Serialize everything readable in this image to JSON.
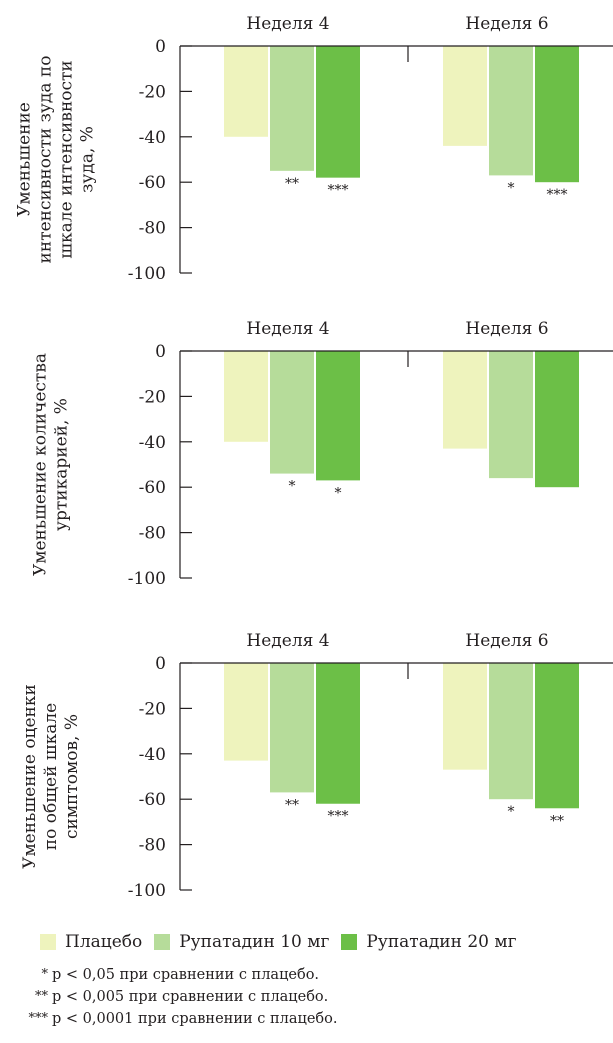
{
  "chart_data": [
    {
      "type": "bar",
      "ylabel": [
        "Уменьшение",
        "интенсивности зуда по",
        "шкале интенсивности",
        "зуда, %"
      ],
      "ylim": [
        -100,
        0
      ],
      "yticks": [
        "0",
        "-20",
        "-40",
        "-60",
        "-80",
        "-100"
      ],
      "categories": [
        "Неделя 4",
        "Неделя 6"
      ],
      "series": [
        {
          "name": "Плацебо",
          "values": [
            -40,
            -44
          ]
        },
        {
          "name": "Рупатадин 10 мг",
          "values": [
            -55,
            -57
          ]
        },
        {
          "name": "Рупатадин 20 мг",
          "values": [
            -58,
            -60
          ]
        }
      ],
      "annotations": [
        [
          "",
          "**",
          "***"
        ],
        [
          "",
          "*",
          "***"
        ]
      ]
    },
    {
      "type": "bar",
      "ylabel": [
        "Уменьшение количества",
        "уртикарией, %"
      ],
      "ylim": [
        -100,
        0
      ],
      "yticks": [
        "0",
        "-20",
        "-40",
        "-60",
        "-80",
        "-100"
      ],
      "categories": [
        "Неделя 4",
        "Неделя 6"
      ],
      "series": [
        {
          "name": "Плацебо",
          "values": [
            -40,
            -43
          ]
        },
        {
          "name": "Рупатадин 10 мг",
          "values": [
            -54,
            -56
          ]
        },
        {
          "name": "Рупатадин 20 мг",
          "values": [
            -57,
            -60
          ]
        }
      ],
      "annotations": [
        [
          "",
          "*",
          "*"
        ],
        [
          "",
          "",
          ""
        ]
      ]
    },
    {
      "type": "bar",
      "ylabel": [
        "Уменьшение оценки",
        "по общей шкале",
        "симптомов, %"
      ],
      "ylim": [
        -100,
        0
      ],
      "yticks": [
        "0",
        "-20",
        "-40",
        "-60",
        "-80",
        "-100"
      ],
      "categories": [
        "Неделя 4",
        "Неделя 6"
      ],
      "series": [
        {
          "name": "Плацебо",
          "values": [
            -43,
            -47
          ]
        },
        {
          "name": "Рупатадин 10 мг",
          "values": [
            -57,
            -60
          ]
        },
        {
          "name": "Рупатадин 20 мг",
          "values": [
            -62,
            -64
          ]
        }
      ],
      "annotations": [
        [
          "",
          "**",
          "***"
        ],
        [
          "",
          "*",
          "**"
        ]
      ]
    }
  ],
  "legend": [
    {
      "label": "Плацебо",
      "color": "#eef3bd"
    },
    {
      "label": "Рупатадин 10 мг",
      "color": "#b6dc9a"
    },
    {
      "label": "Рупатадин 20 мг",
      "color": "#6cbf47"
    }
  ],
  "footnotes": [
    {
      "marker": "*",
      "text": "p < 0,05 при сравнении с плацебо."
    },
    {
      "marker": "**",
      "text": "p < 0,005 при сравнении с плацебо."
    },
    {
      "marker": "***",
      "text": "p < 0,0001 при сравнении с плацебо."
    }
  ]
}
